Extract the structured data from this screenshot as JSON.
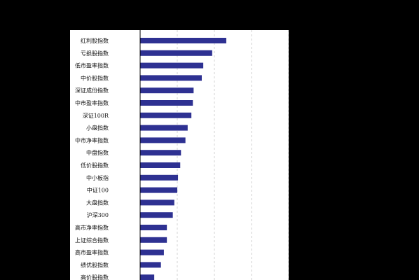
{
  "colors": {
    "background": "#000000",
    "panel": "#ffffff",
    "bar": "#2e3192",
    "grid": "#c8c8c8",
    "axis": "#000000"
  },
  "chart_data": {
    "type": "bar",
    "orientation": "horizontal",
    "title": "",
    "xlabel": "",
    "ylabel": "",
    "grid": true,
    "grid_style": "dashed vertical",
    "xlim": [
      0,
      2
    ],
    "categories": [
      "红利股指数",
      "亏损股指数",
      "低市盈率指数",
      "中价股指数",
      "深证成份指数",
      "中市盈率指数",
      "深证100R",
      "小盘指数",
      "中市净率指数",
      "中盘指数",
      "低价股指数",
      "中小板指",
      "中证100",
      "大盘指数",
      "沪深300",
      "高市净率指数",
      "上证综合指数",
      "高市盈率指数",
      "绩优股指数",
      "高价股指数"
    ],
    "values": [
      1.16,
      0.97,
      0.85,
      0.83,
      0.72,
      0.71,
      0.69,
      0.64,
      0.61,
      0.55,
      0.54,
      0.51,
      0.5,
      0.46,
      0.44,
      0.36,
      0.36,
      0.32,
      0.28,
      0.19
    ]
  }
}
